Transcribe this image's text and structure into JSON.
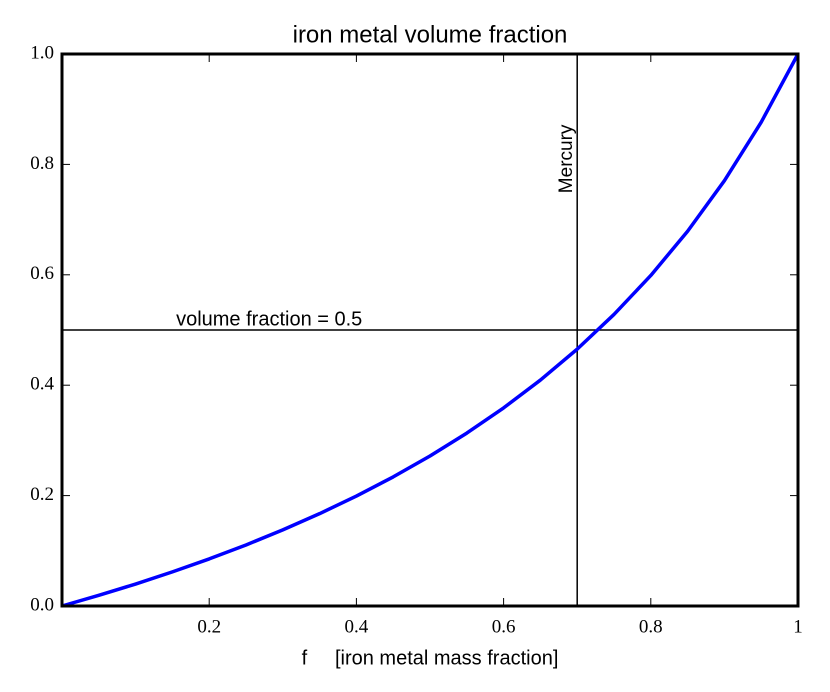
{
  "chart_data": {
    "type": "line",
    "title": "iron metal volume fraction",
    "xlabel": "f     [iron metal mass fraction]",
    "x": [
      0,
      0.05,
      0.1,
      0.15,
      0.2,
      0.25,
      0.3,
      0.35,
      0.4,
      0.45,
      0.5,
      0.55,
      0.6,
      0.65,
      0.7,
      0.75,
      0.8,
      0.85,
      0.9,
      0.95,
      1
    ],
    "values": [
      0,
      0.0193,
      0.0398,
      0.0618,
      0.0853,
      0.1106,
      0.1379,
      0.1673,
      0.1992,
      0.2339,
      0.2717,
      0.3132,
      0.3589,
      0.4093,
      0.4654,
      0.5282,
      0.5988,
      0.6789,
      0.7705,
      0.8764,
      1
    ],
    "color": "#0000ff",
    "xlim": [
      0,
      1
    ],
    "xticks": [
      0.2,
      0.4,
      0.6,
      0.8,
      1
    ],
    "ylim": [
      0,
      1
    ],
    "yticks": [
      {
        "value": 0,
        "label": "0.0"
      },
      0.2,
      0.4,
      0.6,
      0.8,
      {
        "value": 1,
        "label": "1.0"
      }
    ],
    "hline": {
      "value": 0.5,
      "label": "volume fraction = 0.5"
    },
    "vline": {
      "value": 0.7,
      "label": "Mercury"
    }
  }
}
